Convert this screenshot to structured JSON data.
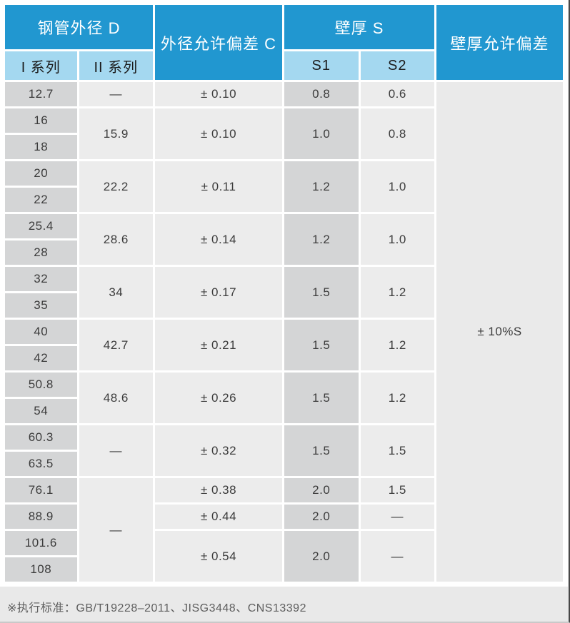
{
  "colors": {
    "header_blue": "#2197d0",
    "subheader_blue": "#a4d8f0",
    "cell_dark_gray": "#d4d5d6",
    "cell_light_gray": "#ececec",
    "page_bg": "#e9e9e9",
    "grid_white": "#ffffff"
  },
  "header": {
    "od_group": "钢管外径 D",
    "series_1": "I 系列",
    "series_2": "II 系列",
    "od_tolerance": "外径允许偏差 C",
    "wall_group": "壁厚 S",
    "s1": "S1",
    "s2": "S2",
    "wall_tolerance": "壁厚允许偏差"
  },
  "table": {
    "body_rows": [
      [
        {
          "t": "12.7",
          "c": "dark"
        },
        {
          "t": "—",
          "c": "light"
        },
        {
          "t": "± 0.10",
          "c": "light"
        },
        {
          "t": "0.8",
          "c": "dark"
        },
        {
          "t": "0.6",
          "c": "light"
        },
        {
          "t": "± 10%S",
          "c": "plain",
          "rs": 19
        }
      ],
      [
        {
          "t": "16",
          "c": "dark"
        },
        {
          "t": "15.9",
          "c": "light",
          "rs": 2
        },
        {
          "t": "± 0.10",
          "c": "light",
          "rs": 2
        },
        {
          "t": "1.0",
          "c": "dark",
          "rs": 2
        },
        {
          "t": "0.8",
          "c": "light",
          "rs": 2
        }
      ],
      [
        {
          "t": "18",
          "c": "dark"
        }
      ],
      [
        {
          "t": "20",
          "c": "dark"
        },
        {
          "t": "22.2",
          "c": "light",
          "rs": 2
        },
        {
          "t": "± 0.11",
          "c": "light",
          "rs": 2
        },
        {
          "t": "1.2",
          "c": "dark",
          "rs": 2
        },
        {
          "t": "1.0",
          "c": "light",
          "rs": 2
        }
      ],
      [
        {
          "t": "22",
          "c": "dark"
        }
      ],
      [
        {
          "t": "25.4",
          "c": "dark"
        },
        {
          "t": "28.6",
          "c": "light",
          "rs": 2
        },
        {
          "t": "± 0.14",
          "c": "light",
          "rs": 2
        },
        {
          "t": "1.2",
          "c": "dark",
          "rs": 2
        },
        {
          "t": "1.0",
          "c": "light",
          "rs": 2
        }
      ],
      [
        {
          "t": "28",
          "c": "dark"
        }
      ],
      [
        {
          "t": "32",
          "c": "dark"
        },
        {
          "t": "34",
          "c": "light",
          "rs": 2
        },
        {
          "t": "± 0.17",
          "c": "light",
          "rs": 2
        },
        {
          "t": "1.5",
          "c": "dark",
          "rs": 2
        },
        {
          "t": "1.2",
          "c": "light",
          "rs": 2
        }
      ],
      [
        {
          "t": "35",
          "c": "dark"
        }
      ],
      [
        {
          "t": "40",
          "c": "dark"
        },
        {
          "t": "42.7",
          "c": "light",
          "rs": 2
        },
        {
          "t": "± 0.21",
          "c": "light",
          "rs": 2
        },
        {
          "t": "1.5",
          "c": "dark",
          "rs": 2
        },
        {
          "t": "1.2",
          "c": "light",
          "rs": 2
        }
      ],
      [
        {
          "t": "42",
          "c": "dark"
        }
      ],
      [
        {
          "t": "50.8",
          "c": "dark"
        },
        {
          "t": "48.6",
          "c": "light",
          "rs": 2
        },
        {
          "t": "± 0.26",
          "c": "light",
          "rs": 2
        },
        {
          "t": "1.5",
          "c": "dark",
          "rs": 2
        },
        {
          "t": "1.2",
          "c": "light",
          "rs": 2
        }
      ],
      [
        {
          "t": "54",
          "c": "dark"
        }
      ],
      [
        {
          "t": "60.3",
          "c": "dark"
        },
        {
          "t": "—",
          "c": "light",
          "rs": 2
        },
        {
          "t": "± 0.32",
          "c": "light",
          "rs": 2
        },
        {
          "t": "1.5",
          "c": "dark",
          "rs": 2
        },
        {
          "t": "1.5",
          "c": "light",
          "rs": 2
        }
      ],
      [
        {
          "t": "63.5",
          "c": "dark"
        }
      ],
      [
        {
          "t": "76.1",
          "c": "dark"
        },
        {
          "t": "—",
          "c": "light",
          "rs": 4
        },
        {
          "t": "± 0.38",
          "c": "light"
        },
        {
          "t": "2.0",
          "c": "dark"
        },
        {
          "t": "1.5",
          "c": "light"
        }
      ],
      [
        {
          "t": "88.9",
          "c": "dark"
        },
        {
          "t": "± 0.44",
          "c": "light"
        },
        {
          "t": "2.0",
          "c": "dark"
        },
        {
          "t": "—",
          "c": "light"
        }
      ],
      [
        {
          "t": "101.6",
          "c": "dark"
        },
        {
          "t": "± 0.54",
          "c": "light",
          "rs": 2
        },
        {
          "t": "2.0",
          "c": "dark",
          "rs": 2
        },
        {
          "t": "—",
          "c": "light",
          "rs": 2
        }
      ],
      [
        {
          "t": "108",
          "c": "dark"
        }
      ]
    ]
  },
  "footer": {
    "note": "※执行标准：GB/T19228–2011、JISG3448、CNS13392"
  }
}
